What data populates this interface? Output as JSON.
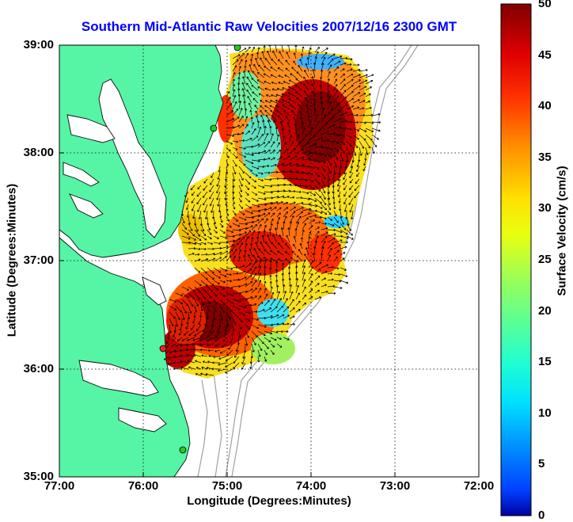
{
  "title": "Southern Mid-Atlantic Raw Velocities 2007/12/16 2300 GMT",
  "xlabel": "Longitude (Degrees:Minutes)",
  "ylabel": "Latitude (Degrees:Minutes)",
  "x_ticks": [
    "77:00",
    "76:00",
    "75:00",
    "74:00",
    "73:00",
    "72:00"
  ],
  "y_ticks": [
    "39:00",
    "38:00",
    "37:00",
    "36:00",
    "35:00"
  ],
  "colorbar": {
    "label": "Surface Velocity (cm/s)",
    "ticks": [
      "0",
      "5",
      "10",
      "15",
      "20",
      "25",
      "30",
      "35",
      "40",
      "45",
      "50"
    ],
    "range": [
      0,
      50
    ]
  },
  "map": {
    "lon_range": [
      -77,
      -72
    ],
    "lat_range": [
      35,
      39
    ],
    "land_color": "#55f5a5",
    "water_color": "#ffffff",
    "grid": true,
    "colormap": "jet"
  }
}
